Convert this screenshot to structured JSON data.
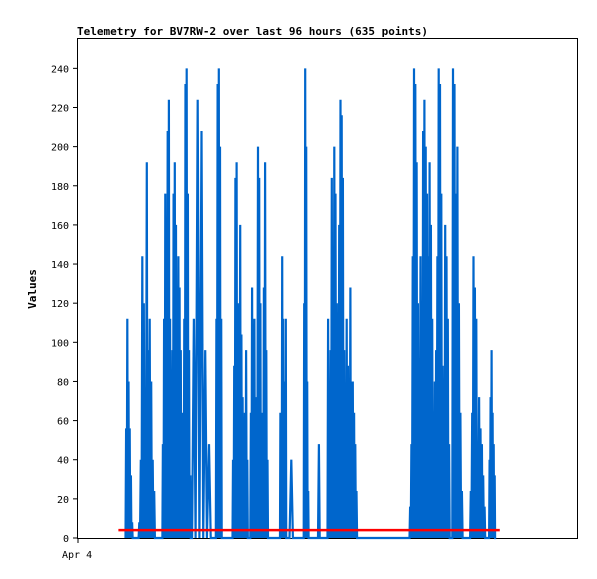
{
  "chart_data": {
    "type": "line",
    "title": "Telemetry for BV7RW-2 over last 96 hours (635 points)",
    "ylabel": "Values",
    "xlabel": "",
    "x_tick_labels": [
      "Apr 4"
    ],
    "y_ticks": [
      0,
      20,
      40,
      60,
      80,
      100,
      120,
      140,
      160,
      180,
      200,
      220,
      240
    ],
    "ylim": [
      0,
      255
    ],
    "grid": false,
    "legend": "none",
    "colors": {
      "series_blue": "#0066cc",
      "series_red": "#ff0000",
      "axis": "#000000"
    },
    "series": [
      {
        "color": "#0066cc",
        "bursts": [
          [
            4.0,
            4.7,
            [
              56,
              112,
              80,
              56,
              32,
              8,
              0
            ]
          ],
          [
            5.1,
            6.6,
            [
              8,
              40,
              144,
              120,
              48,
              192,
              96,
              112,
              80,
              40,
              24,
              0
            ]
          ],
          [
            7.1,
            9.5,
            [
              48,
              112,
              176,
              104,
              208,
              224,
              112,
              40,
              96,
              176,
              192,
              160,
              104,
              144,
              128,
              96,
              64,
              32,
              112,
              232,
              240,
              176,
              96,
              32
            ]
          ],
          [
            9.6,
            11.5,
            [
              112,
              224,
              208,
              96,
              48,
              0
            ]
          ],
          [
            11.6,
            12.2,
            [
              112,
              232,
              240,
              200,
              112,
              0
            ]
          ],
          [
            13.0,
            14.4,
            [
              40,
              88,
              184,
              192,
              120,
              64,
              160,
              104,
              72,
              48,
              64,
              96,
              40,
              0
            ]
          ],
          [
            14.5,
            16.1,
            [
              64,
              128,
              88,
              112,
              40,
              72,
              200,
              184,
              120,
              64,
              32,
              128,
              192,
              96,
              40,
              0
            ]
          ],
          [
            17.0,
            17.6,
            [
              64,
              48,
              144,
              112,
              80,
              24,
              112,
              0
            ]
          ],
          [
            17.8,
            18.4,
            [
              40,
              0
            ]
          ],
          [
            19.0,
            19.5,
            [
              120,
              240,
              200,
              80,
              24,
              0
            ]
          ],
          [
            20.2,
            20.5,
            [
              48,
              0
            ]
          ],
          [
            21.0,
            23.6,
            [
              112,
              64,
              96,
              184,
              144,
              200,
              176,
              120,
              88,
              160,
              224,
              216,
              184,
              96,
              48,
              112,
              88,
              64,
              128,
              40,
              80,
              64,
              48,
              24,
              0
            ]
          ],
          [
            27.9,
            31.4,
            [
              16,
              48,
              144,
              240,
              232,
              192,
              120,
              48,
              144,
              112,
              208,
              224,
              200,
              176,
              144,
              192,
              160,
              112,
              48,
              80,
              96,
              144,
              240,
              232,
              176,
              88,
              64,
              160,
              144,
              112,
              48,
              0
            ]
          ],
          [
            31.5,
            32.5,
            [
              240,
              232,
              176,
              200,
              120,
              64,
              24,
              0
            ]
          ],
          [
            33.0,
            34.4,
            [
              24,
              64,
              144,
              128,
              112,
              40,
              72,
              56,
              48,
              32,
              16,
              0
            ]
          ],
          [
            34.6,
            35.2,
            [
              40,
              72,
              96,
              64,
              48,
              32,
              0
            ]
          ]
        ]
      },
      {
        "color": "#ff0000",
        "x_range": [
          3.4,
          35.5
        ],
        "value": 4
      }
    ]
  }
}
